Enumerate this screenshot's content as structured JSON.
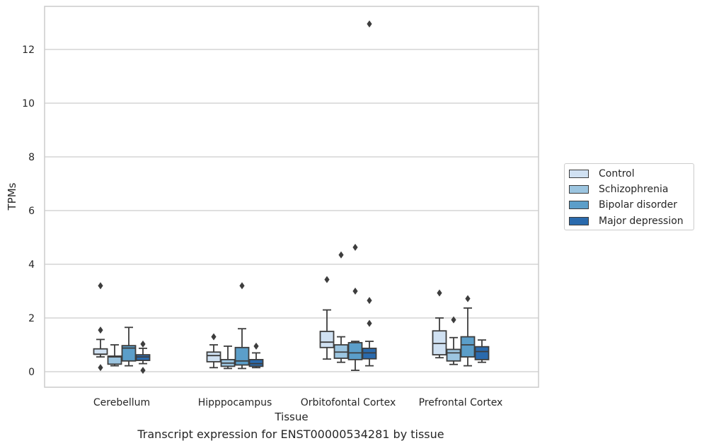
{
  "caption": "Transcript expression for ENST00000534281 by tissue",
  "chart_data": {
    "type": "box",
    "xlabel": "Tissue",
    "ylabel": "TPMs",
    "ylim": [
      -0.55,
      13.5
    ],
    "yticks": [
      0,
      2,
      4,
      6,
      8,
      10,
      12
    ],
    "grid": "horizontal",
    "legend_position": "center-right",
    "categories": [
      "Cerebellum",
      "Hipppocampus",
      "Orbitofontal Cortex",
      "Prefrontal Cortex"
    ],
    "series": [
      {
        "name": "Control",
        "color": "#d0e1f2",
        "boxes": [
          {
            "whisker_low": 0.55,
            "q1": 0.65,
            "median": 0.65,
            "q3": 0.85,
            "whisker_high": 1.2,
            "outliers": [
              3.2,
              1.55,
              0.15
            ]
          },
          {
            "whisker_low": 0.15,
            "q1": 0.37,
            "median": 0.6,
            "q3": 0.73,
            "whisker_high": 1.0,
            "outliers": [
              1.3
            ]
          },
          {
            "whisker_low": 0.47,
            "q1": 0.9,
            "median": 1.1,
            "q3": 1.5,
            "whisker_high": 2.3,
            "outliers": [
              3.43
            ]
          },
          {
            "whisker_low": 0.52,
            "q1": 0.63,
            "median": 1.05,
            "q3": 1.52,
            "whisker_high": 2.0,
            "outliers": [
              2.93
            ]
          }
        ]
      },
      {
        "name": "Schizophrenia",
        "color": "#9cc5e0",
        "boxes": [
          {
            "whisker_low": 0.22,
            "q1": 0.28,
            "median": 0.55,
            "q3": 0.58,
            "whisker_high": 1.0,
            "outliers": []
          },
          {
            "whisker_low": 0.12,
            "q1": 0.2,
            "median": 0.32,
            "q3": 0.45,
            "whisker_high": 0.95,
            "outliers": []
          },
          {
            "whisker_low": 0.35,
            "q1": 0.5,
            "median": 0.73,
            "q3": 1.0,
            "whisker_high": 1.3,
            "outliers": [
              4.35
            ]
          },
          {
            "whisker_low": 0.27,
            "q1": 0.4,
            "median": 0.7,
            "q3": 0.83,
            "whisker_high": 1.27,
            "outliers": [
              1.93
            ]
          }
        ]
      },
      {
        "name": "Bipolar disorder",
        "color": "#5b9ec9",
        "boxes": [
          {
            "whisker_low": 0.22,
            "q1": 0.4,
            "median": 0.88,
            "q3": 0.97,
            "whisker_high": 1.65,
            "outliers": []
          },
          {
            "whisker_low": 0.12,
            "q1": 0.25,
            "median": 0.4,
            "q3": 0.9,
            "whisker_high": 1.6,
            "outliers": [
              3.2
            ]
          },
          {
            "whisker_low": 0.05,
            "q1": 0.45,
            "median": 0.7,
            "q3": 1.08,
            "whisker_high": 1.13,
            "outliers": [
              4.63,
              3.0
            ]
          },
          {
            "whisker_low": 0.22,
            "q1": 0.55,
            "median": 1.0,
            "q3": 1.3,
            "whisker_high": 2.37,
            "outliers": [
              2.72
            ]
          }
        ]
      },
      {
        "name": "Major depression",
        "color": "#2a6aad",
        "boxes": [
          {
            "whisker_low": 0.3,
            "q1": 0.42,
            "median": 0.55,
            "q3": 0.63,
            "whisker_high": 0.87,
            "outliers": [
              1.03,
              0.05
            ]
          },
          {
            "whisker_low": 0.15,
            "q1": 0.2,
            "median": 0.3,
            "q3": 0.45,
            "whisker_high": 0.7,
            "outliers": [
              0.95
            ]
          },
          {
            "whisker_low": 0.22,
            "q1": 0.48,
            "median": 0.7,
            "q3": 0.87,
            "whisker_high": 1.13,
            "outliers": [
              2.65,
              1.8,
              12.95
            ]
          },
          {
            "whisker_low": 0.35,
            "q1": 0.45,
            "median": 0.75,
            "q3": 0.93,
            "whisker_high": 1.18,
            "outliers": []
          }
        ]
      }
    ]
  }
}
